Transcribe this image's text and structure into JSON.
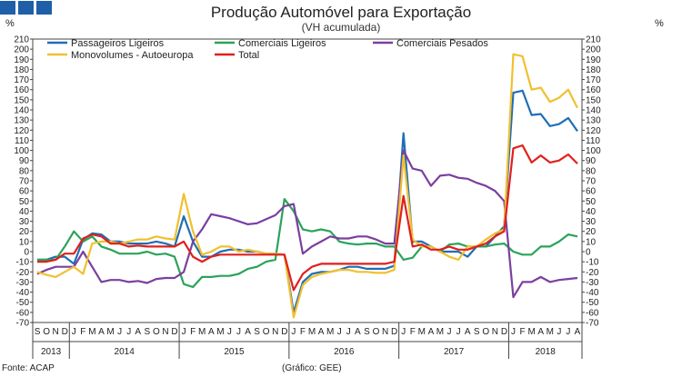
{
  "header": {
    "title": "Produção Automóvel para Exportação",
    "subtitle": "(VH acumulada)",
    "unit_left": "%",
    "unit_right": "%"
  },
  "footer": {
    "source": "Fonte: ACAP",
    "credit": "(Gráfico: GEE)"
  },
  "logo": {
    "color": "#1f5fa8"
  },
  "chart_data": {
    "type": "line",
    "ylim": [
      -70,
      210
    ],
    "ystep": 10,
    "grid": false,
    "legend_position": "top",
    "month_labels": [
      "S",
      "O",
      "N",
      "D",
      "J",
      "F",
      "M",
      "A",
      "M",
      "J",
      "J",
      "A",
      "S",
      "O",
      "N",
      "D",
      "J",
      "F",
      "M",
      "A",
      "M",
      "J",
      "J",
      "A",
      "S",
      "O",
      "N",
      "D",
      "J",
      "F",
      "M",
      "A",
      "M",
      "J",
      "J",
      "A",
      "S",
      "O",
      "N",
      "D",
      "J",
      "F",
      "M",
      "A",
      "M",
      "J",
      "J",
      "A",
      "S",
      "O",
      "N",
      "D",
      "J",
      "F",
      "M",
      "A",
      "M",
      "J",
      "J",
      "A"
    ],
    "years": [
      {
        "label": "2013",
        "start": 0,
        "end": 3
      },
      {
        "label": "2014",
        "start": 4,
        "end": 15
      },
      {
        "label": "2015",
        "start": 16,
        "end": 27
      },
      {
        "label": "2016",
        "start": 28,
        "end": 39
      },
      {
        "label": "2017",
        "start": 40,
        "end": 51
      },
      {
        "label": "2018",
        "start": 52,
        "end": 59
      }
    ],
    "series": [
      {
        "name": "Passageiros Ligeiros",
        "color": "#1f6eb5",
        "values": [
          -8,
          -8,
          -5,
          -5,
          -12,
          12,
          18,
          17,
          10,
          10,
          8,
          8,
          8,
          10,
          8,
          5,
          35,
          10,
          -5,
          -5,
          0,
          2,
          2,
          0,
          0,
          -2,
          -2,
          -3,
          -60,
          -30,
          -22,
          -20,
          -20,
          -18,
          -15,
          -15,
          -17,
          -17,
          -17,
          -14,
          117,
          10,
          10,
          5,
          0,
          0,
          0,
          -5,
          5,
          5,
          15,
          25,
          157,
          159,
          135,
          136,
          124,
          126,
          132,
          119
        ]
      },
      {
        "name": "Comerciais Ligeiros",
        "color": "#2aa35a",
        "values": [
          -8,
          -8,
          -8,
          5,
          20,
          10,
          15,
          5,
          2,
          -2,
          -2,
          -2,
          0,
          -3,
          -2,
          -5,
          -32,
          -35,
          -25,
          -25,
          -24,
          -24,
          -22,
          -17,
          -15,
          -10,
          -8,
          52,
          40,
          22,
          20,
          22,
          20,
          10,
          8,
          7,
          8,
          8,
          5,
          5,
          -8,
          -6,
          5,
          5,
          0,
          7,
          8,
          5,
          5,
          5,
          7,
          8,
          0,
          -3,
          -3,
          5,
          5,
          10,
          17,
          15
        ]
      },
      {
        "name": "Comerciais Pesados",
        "color": "#7b3fa0",
        "values": [
          -22,
          -18,
          -15,
          -15,
          -15,
          0,
          -15,
          -30,
          -28,
          -28,
          -30,
          -29,
          -31,
          -27,
          -26,
          -26,
          -20,
          10,
          22,
          37,
          35,
          33,
          30,
          27,
          28,
          32,
          36,
          45,
          47,
          -2,
          5,
          10,
          15,
          13,
          13,
          15,
          15,
          12,
          8,
          8,
          100,
          82,
          80,
          65,
          75,
          76,
          73,
          72,
          68,
          65,
          60,
          50,
          -45,
          -30,
          -30,
          -25,
          -30,
          -28,
          -27,
          -26
        ]
      },
      {
        "name": "Monovolumes - Autoeuropa",
        "color": "#f0c030",
        "values": [
          -20,
          -23,
          -25,
          -20,
          -15,
          -22,
          8,
          10,
          10,
          8,
          10,
          12,
          12,
          15,
          13,
          12,
          57,
          20,
          -3,
          0,
          5,
          5,
          0,
          2,
          0,
          -2,
          -2,
          -3,
          -65,
          -33,
          -25,
          -22,
          -20,
          -18,
          -18,
          -20,
          -20,
          -21,
          -21,
          -18,
          95,
          12,
          5,
          5,
          0,
          -5,
          -8,
          5,
          5,
          12,
          18,
          22,
          195,
          193,
          160,
          162,
          148,
          152,
          160,
          142
        ]
      },
      {
        "name": "Total",
        "color": "#e0201c",
        "values": [
          -10,
          -10,
          -8,
          -2,
          -2,
          13,
          17,
          15,
          8,
          8,
          5,
          6,
          5,
          5,
          5,
          5,
          10,
          -5,
          -10,
          -5,
          -3,
          -3,
          -3,
          -3,
          -3,
          -3,
          -3,
          -3,
          -38,
          -22,
          -15,
          -12,
          -12,
          -12,
          -12,
          -12,
          -12,
          -12,
          -12,
          -10,
          55,
          5,
          7,
          2,
          2,
          5,
          2,
          2,
          5,
          8,
          15,
          20,
          102,
          105,
          88,
          95,
          88,
          90,
          96,
          87
        ]
      }
    ]
  }
}
